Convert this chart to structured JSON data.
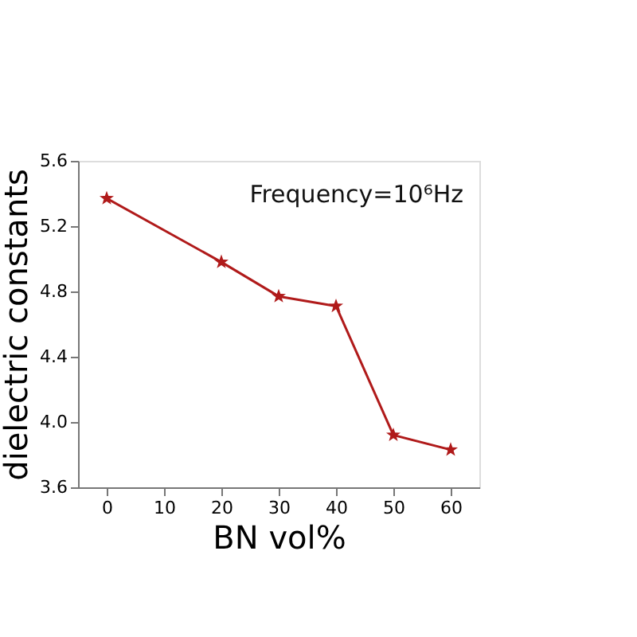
{
  "chart_data": {
    "type": "line",
    "xlabel": "BN vol%",
    "ylabel": "dielectric constants",
    "x": [
      0,
      20,
      30,
      40,
      50,
      60
    ],
    "series": [
      {
        "color": "#b01a1a",
        "values": [
          5.37,
          4.98,
          4.77,
          4.71,
          3.92,
          3.83
        ]
      }
    ],
    "xlim": [
      -5,
      65
    ],
    "xticks": [
      0,
      10,
      20,
      30,
      40,
      50,
      60
    ],
    "ylim": [
      3.6,
      5.6
    ],
    "yticks": [
      3.6,
      {
        "value": 4,
        "label": "4.0"
      },
      4.4,
      4.8,
      5.2,
      5.6
    ],
    "annotations": [
      "Frequency=10⁶Hz"
    ],
    "marker": "star",
    "line_style": "solid",
    "grid": false,
    "legend": false
  }
}
